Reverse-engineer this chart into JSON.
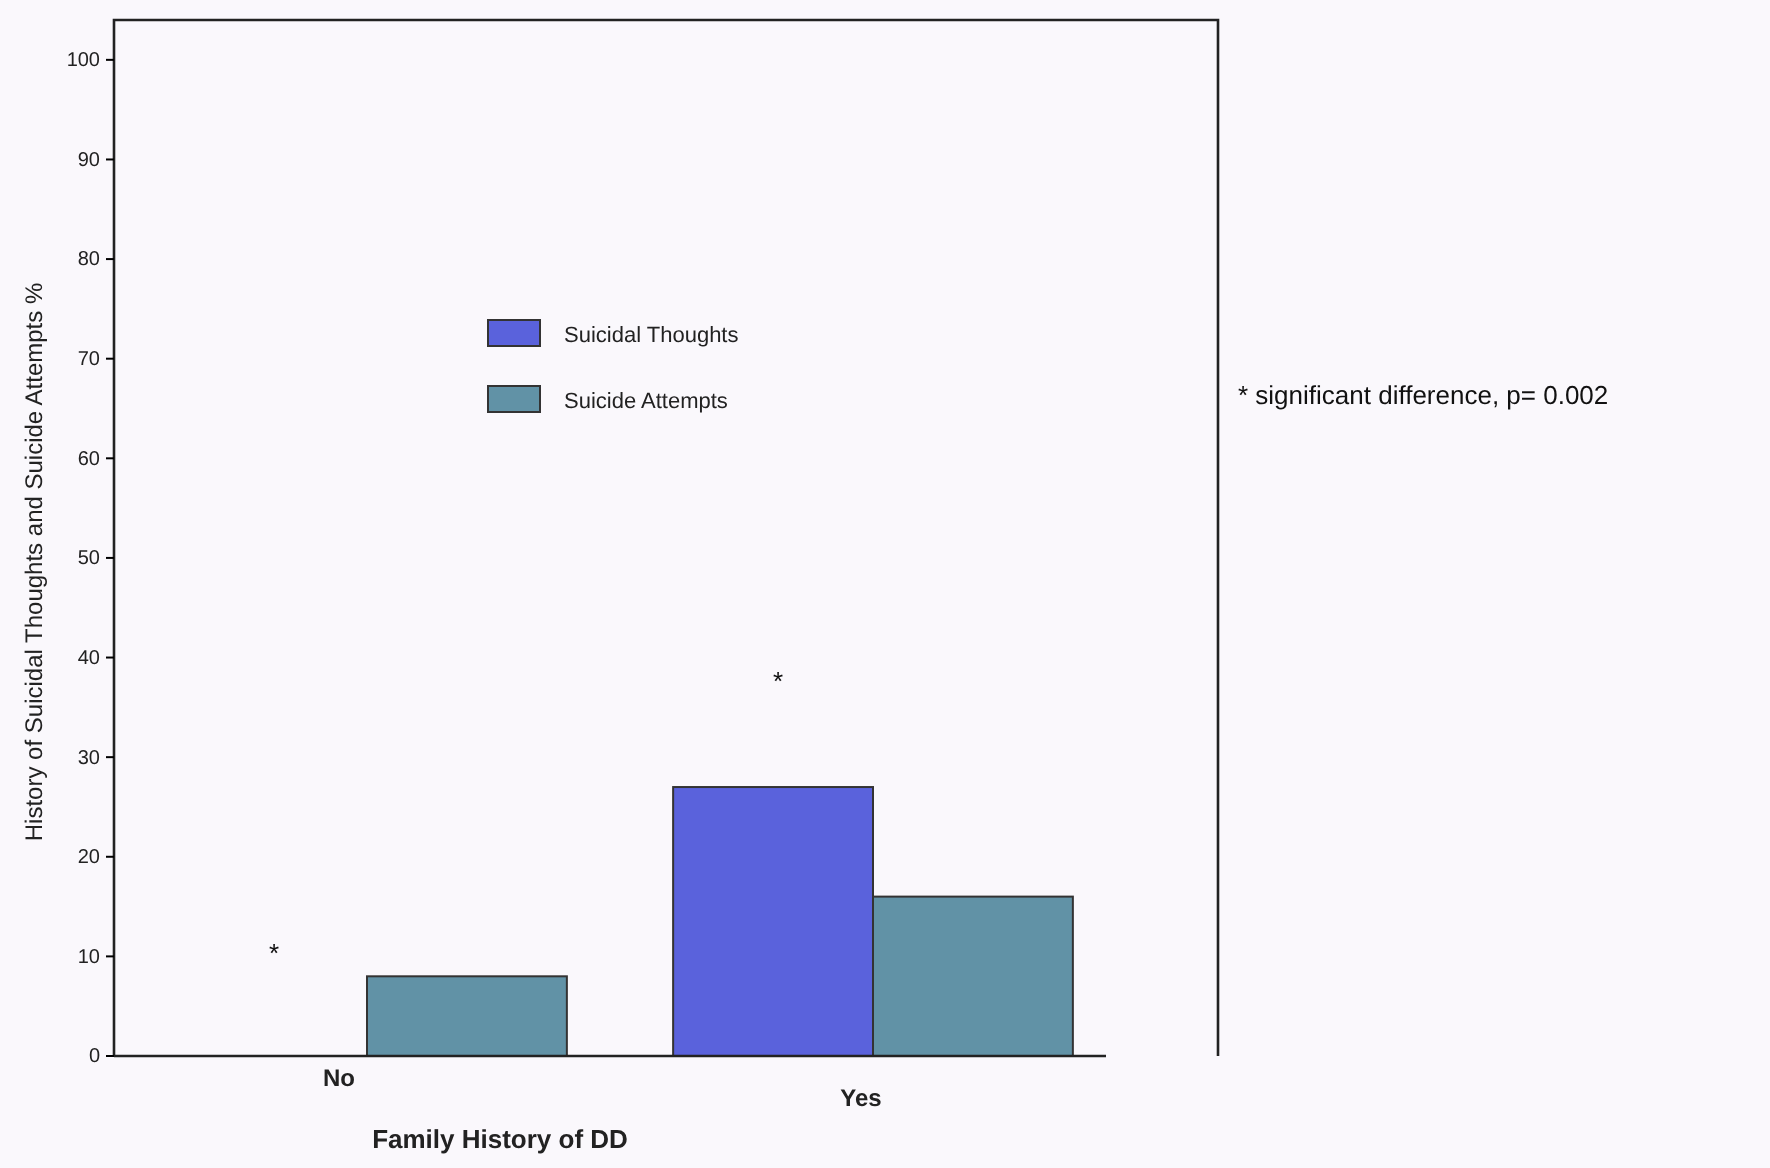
{
  "chart_data": {
    "type": "bar",
    "xlabel": "Family History of DD",
    "ylabel": "History of Suicidal Thoughts and Suicide Attempts %",
    "categories": [
      "No",
      "Yes"
    ],
    "series": [
      {
        "name": "Suicidal Thoughts",
        "color": "#5a62dc",
        "values": [
          0,
          27
        ]
      },
      {
        "name": "Suicide Attempts",
        "color": "#6192a6",
        "values": [
          8,
          16
        ]
      }
    ],
    "ylim": [
      0,
      104
    ],
    "yticks": [
      0,
      10,
      20,
      30,
      40,
      50,
      60,
      70,
      80,
      90,
      100
    ],
    "grid": false,
    "legend": "top",
    "annotations": [
      "*",
      "*",
      "* significant difference, p= 0.002"
    ]
  }
}
